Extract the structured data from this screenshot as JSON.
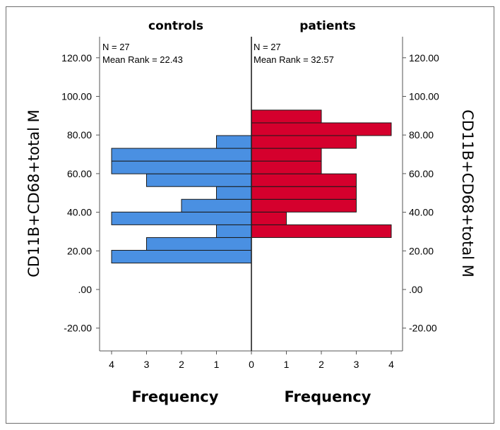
{
  "chart_data": {
    "type": "bar",
    "subtype": "back-to-back histogram",
    "ylabel_left": "CD11B+CD68+total M",
    "ylabel_right": "CD11B+CD68+total M",
    "ylim": [
      -32,
      122
    ],
    "yticks": [
      -20,
      0,
      20,
      40,
      60,
      80,
      100,
      120
    ],
    "ytick_labels": [
      "-20.00",
      ".00",
      "20.00",
      "40.00",
      "60.00",
      "80.00",
      "100.00",
      "120.00"
    ],
    "bin_width": 6.6,
    "xlim": [
      0,
      4
    ],
    "xticks": [
      0,
      1,
      2,
      3,
      4
    ],
    "xlabel": "Frequency",
    "series": [
      {
        "name": "controls",
        "color": "#4a90e2",
        "n_text": "N = 27",
        "mean_rank_text": "Mean Rank = 22.43",
        "bins": [
          {
            "y0": 13.7,
            "y1": 20.3,
            "count": 4
          },
          {
            "y0": 20.3,
            "y1": 26.9,
            "count": 3
          },
          {
            "y0": 26.9,
            "y1": 33.5,
            "count": 1
          },
          {
            "y0": 33.5,
            "y1": 40.1,
            "count": 4
          },
          {
            "y0": 40.1,
            "y1": 46.7,
            "count": 2
          },
          {
            "y0": 46.7,
            "y1": 53.3,
            "count": 1
          },
          {
            "y0": 53.3,
            "y1": 59.9,
            "count": 3
          },
          {
            "y0": 59.9,
            "y1": 66.5,
            "count": 4
          },
          {
            "y0": 66.5,
            "y1": 73.1,
            "count": 4
          },
          {
            "y0": 73.1,
            "y1": 79.7,
            "count": 1
          }
        ]
      },
      {
        "name": "patients",
        "color": "#d5002d",
        "n_text": "N = 27",
        "mean_rank_text": "Mean Rank = 32.57",
        "bins": [
          {
            "y0": 26.9,
            "y1": 33.5,
            "count": 4
          },
          {
            "y0": 33.5,
            "y1": 40.1,
            "count": 1
          },
          {
            "y0": 40.1,
            "y1": 46.7,
            "count": 3
          },
          {
            "y0": 46.7,
            "y1": 53.3,
            "count": 3
          },
          {
            "y0": 53.3,
            "y1": 59.9,
            "count": 3
          },
          {
            "y0": 59.9,
            "y1": 66.5,
            "count": 2
          },
          {
            "y0": 66.5,
            "y1": 73.1,
            "count": 2
          },
          {
            "y0": 73.1,
            "y1": 79.7,
            "count": 3
          },
          {
            "y0": 79.7,
            "y1": 86.3,
            "count": 4
          },
          {
            "y0": 86.3,
            "y1": 92.9,
            "count": 2
          }
        ]
      }
    ]
  }
}
